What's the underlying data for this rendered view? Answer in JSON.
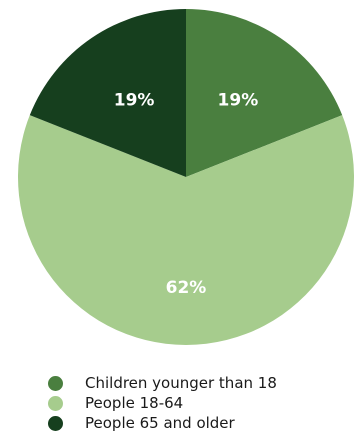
{
  "chart_data": {
    "type": "pie",
    "title": "",
    "categories": [
      "Children younger than 18",
      "People 18-64",
      "People 65 and older"
    ],
    "values": [
      19,
      62,
      19
    ],
    "labels": [
      "19%",
      "62%",
      "19%"
    ],
    "colors": [
      "#4a7f3f",
      "#a6cc8d",
      "#163f1e"
    ],
    "start_angle_deg": 0,
    "direction": "clockwise",
    "legend": {
      "placement": "bottom",
      "items": [
        {
          "label": "Children younger than 18",
          "color": "#4a7f3f"
        },
        {
          "label": "People 18-64",
          "color": "#a6cc8d"
        },
        {
          "label": "People 65 and older",
          "color": "#163f1e"
        }
      ]
    }
  }
}
